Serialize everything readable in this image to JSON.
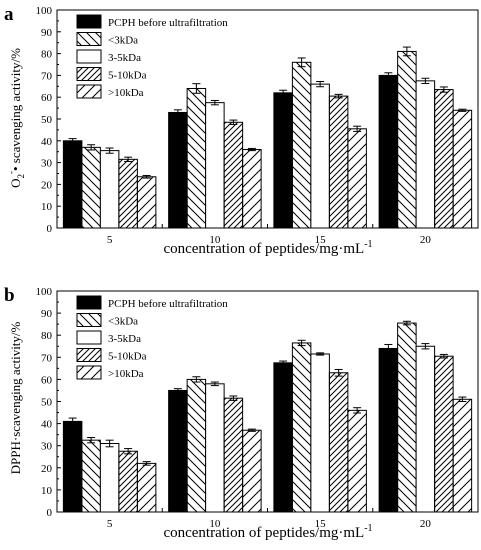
{
  "chart_data": [
    {
      "type": "bar",
      "panel_label": "a",
      "ylabel_base": "O",
      "ylabel_sub": "2",
      "ylabel_sup": "-",
      "ylabel_rest": "• scavenging activity/%",
      "xlabel": "concentration of peptides/mg·mL",
      "xlabel_sup": "-1",
      "categories": [
        "5",
        "10",
        "15",
        "20"
      ],
      "ylim": [
        0,
        100
      ],
      "yticks": [
        "0",
        "10",
        "20",
        "30",
        "40",
        "50",
        "60",
        "70",
        "80",
        "90",
        "100"
      ],
      "legend_position": "top-left",
      "series": [
        {
          "name": "PCPH before ultrafiltration",
          "pattern": "solid",
          "values": [
            40.0,
            53.0,
            62.0,
            70.0
          ],
          "errors": [
            1.0,
            1.2,
            1.2,
            1.2
          ]
        },
        {
          "name": "<3kDa",
          "pattern": "backslash",
          "values": [
            37.0,
            64.0,
            76.0,
            81.0
          ],
          "errors": [
            1.2,
            2.2,
            2.0,
            2.0
          ]
        },
        {
          "name": "3-5kDa",
          "pattern": "blank",
          "values": [
            35.5,
            57.5,
            66.0,
            67.5
          ],
          "errors": [
            1.2,
            1.0,
            1.2,
            1.2
          ]
        },
        {
          "name": "5-10kDa",
          "pattern": "slash-dense",
          "values": [
            31.5,
            48.5,
            60.5,
            63.5
          ],
          "errors": [
            1.0,
            1.0,
            0.8,
            1.2
          ]
        },
        {
          "name": ">10kDa",
          "pattern": "slash-wide",
          "values": [
            23.5,
            36.0,
            45.5,
            54.0
          ],
          "errors": [
            0.6,
            0.5,
            1.2,
            0.5
          ]
        }
      ]
    },
    {
      "type": "bar",
      "panel_label": "b",
      "ylabel": "DPPH·scavenging activity/%",
      "xlabel": "concentration of peptides/mg·mL",
      "xlabel_sup": "-1",
      "categories": [
        "5",
        "10",
        "15",
        "20"
      ],
      "ylim": [
        0,
        100
      ],
      "yticks": [
        "0",
        "10",
        "20",
        "30",
        "40",
        "50",
        "60",
        "70",
        "80",
        "90",
        "100"
      ],
      "legend_position": "top-left",
      "series": [
        {
          "name": "PCPH before ultrafiltration",
          "pattern": "solid",
          "values": [
            41.0,
            55.0,
            67.5,
            74.0
          ],
          "errors": [
            1.5,
            0.8,
            0.8,
            1.8
          ]
        },
        {
          "name": "<3kDa",
          "pattern": "backslash",
          "values": [
            32.5,
            60.0,
            76.5,
            85.5
          ],
          "errors": [
            1.2,
            1.2,
            1.2,
            0.8
          ]
        },
        {
          "name": "3-5kDa",
          "pattern": "blank",
          "values": [
            31.0,
            58.0,
            71.5,
            75.0
          ],
          "errors": [
            1.5,
            0.8,
            0.5,
            1.2
          ]
        },
        {
          "name": "5-10kDa",
          "pattern": "slash-dense",
          "values": [
            27.5,
            51.5,
            63.0,
            70.5
          ],
          "errors": [
            1.2,
            1.0,
            1.5,
            0.8
          ]
        },
        {
          "name": ">10kDa",
          "pattern": "slash-wide",
          "values": [
            22.0,
            37.0,
            46.0,
            51.0
          ],
          "errors": [
            0.8,
            0.5,
            1.2,
            1.0
          ]
        }
      ]
    }
  ]
}
